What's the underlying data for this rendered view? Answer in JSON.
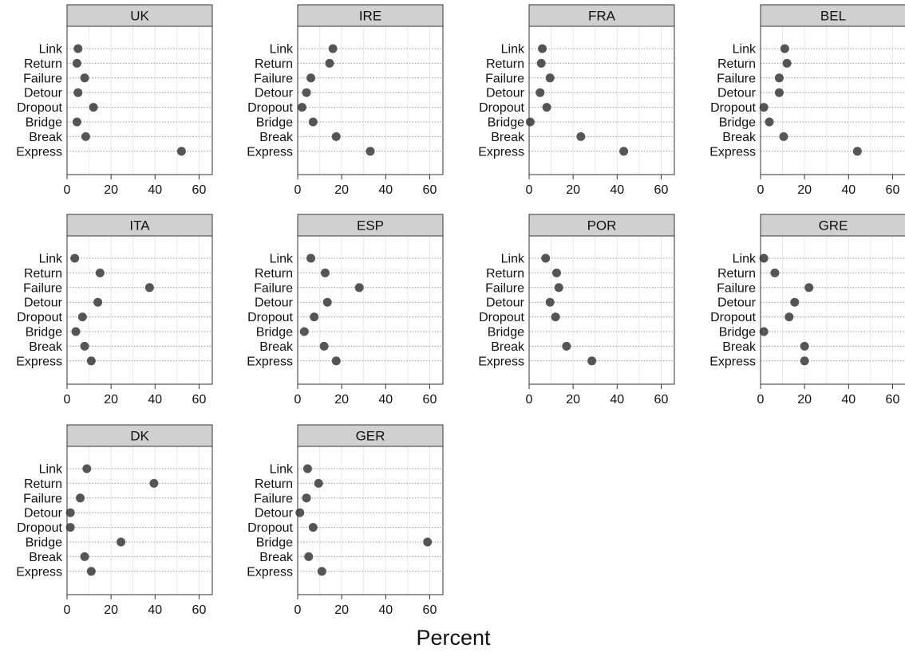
{
  "chart_data": {
    "type": "scatter",
    "xlabel": "Percent",
    "xlim": [
      0,
      66
    ],
    "xticks": [
      "0",
      "20",
      "40",
      "60"
    ],
    "grid": true,
    "categories": [
      "Link",
      "Return",
      "Failure",
      "Detour",
      "Dropout",
      "Bridge",
      "Break",
      "Express"
    ],
    "panels": [
      {
        "title": "UK",
        "values": [
          5,
          4.5,
          8,
          5,
          12,
          4.5,
          8.5,
          52
        ]
      },
      {
        "title": "IRE",
        "values": [
          16,
          14.5,
          6,
          4,
          2,
          7,
          17.5,
          33
        ]
      },
      {
        "title": "FRA",
        "values": [
          6,
          5.5,
          9.5,
          5,
          8,
          0.5,
          23.5,
          43
        ]
      },
      {
        "title": "BEL",
        "values": [
          11,
          12,
          8.5,
          8.5,
          1.5,
          4,
          10.5,
          44
        ]
      },
      {
        "title": "ITA",
        "values": [
          3.5,
          15,
          37.5,
          14,
          7,
          4,
          8,
          11
        ]
      },
      {
        "title": "ESP",
        "values": [
          6,
          12.5,
          28,
          13.5,
          7.5,
          3,
          12,
          17.5
        ]
      },
      {
        "title": "POR",
        "values": [
          7.5,
          12.5,
          13.5,
          9.5,
          12,
          null,
          17,
          28.5
        ]
      },
      {
        "title": "GRE",
        "values": [
          1.5,
          6.5,
          22,
          15.5,
          13,
          1.5,
          20,
          20
        ]
      },
      {
        "title": "DK",
        "values": [
          9,
          39.5,
          6,
          1.5,
          1.5,
          24.5,
          8,
          11
        ]
      },
      {
        "title": "GER",
        "values": [
          4.5,
          9.5,
          4,
          1,
          7,
          59,
          5,
          11
        ]
      }
    ]
  }
}
